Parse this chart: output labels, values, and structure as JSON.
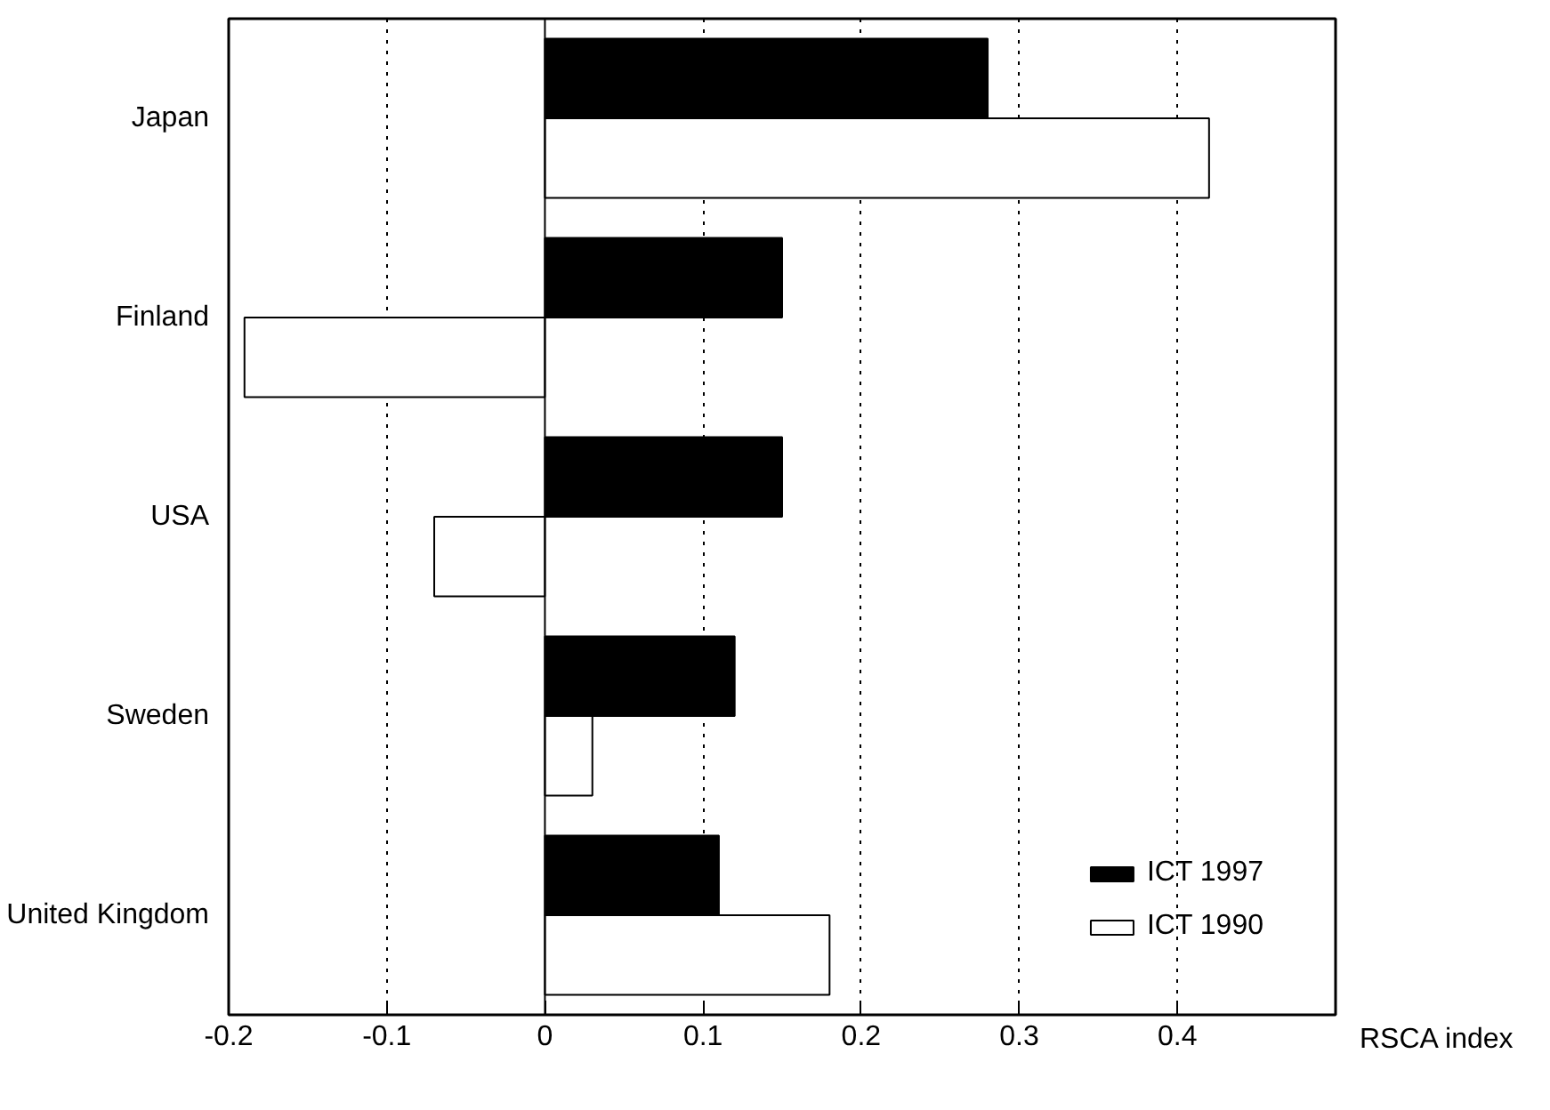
{
  "chart_data": {
    "type": "bar",
    "orientation": "horizontal",
    "xlabel": "RSCA index",
    "categories": [
      "Japan",
      "Finland",
      "USA",
      "Sweden",
      "United Kingdom"
    ],
    "series": [
      {
        "name": "ICT 1997",
        "color": "#000000",
        "values": [
          0.28,
          0.15,
          0.15,
          0.12,
          0.11
        ]
      },
      {
        "name": "ICT 1990",
        "color": "#ffffff",
        "values": [
          0.42,
          -0.19,
          -0.07,
          0.03,
          0.18
        ]
      }
    ],
    "xlim": [
      -0.2,
      0.5
    ],
    "xticks": [
      -0.2,
      -0.1,
      0,
      0.1,
      0.2,
      0.3,
      0.4
    ],
    "grid": "x",
    "legend": "bottom right"
  }
}
